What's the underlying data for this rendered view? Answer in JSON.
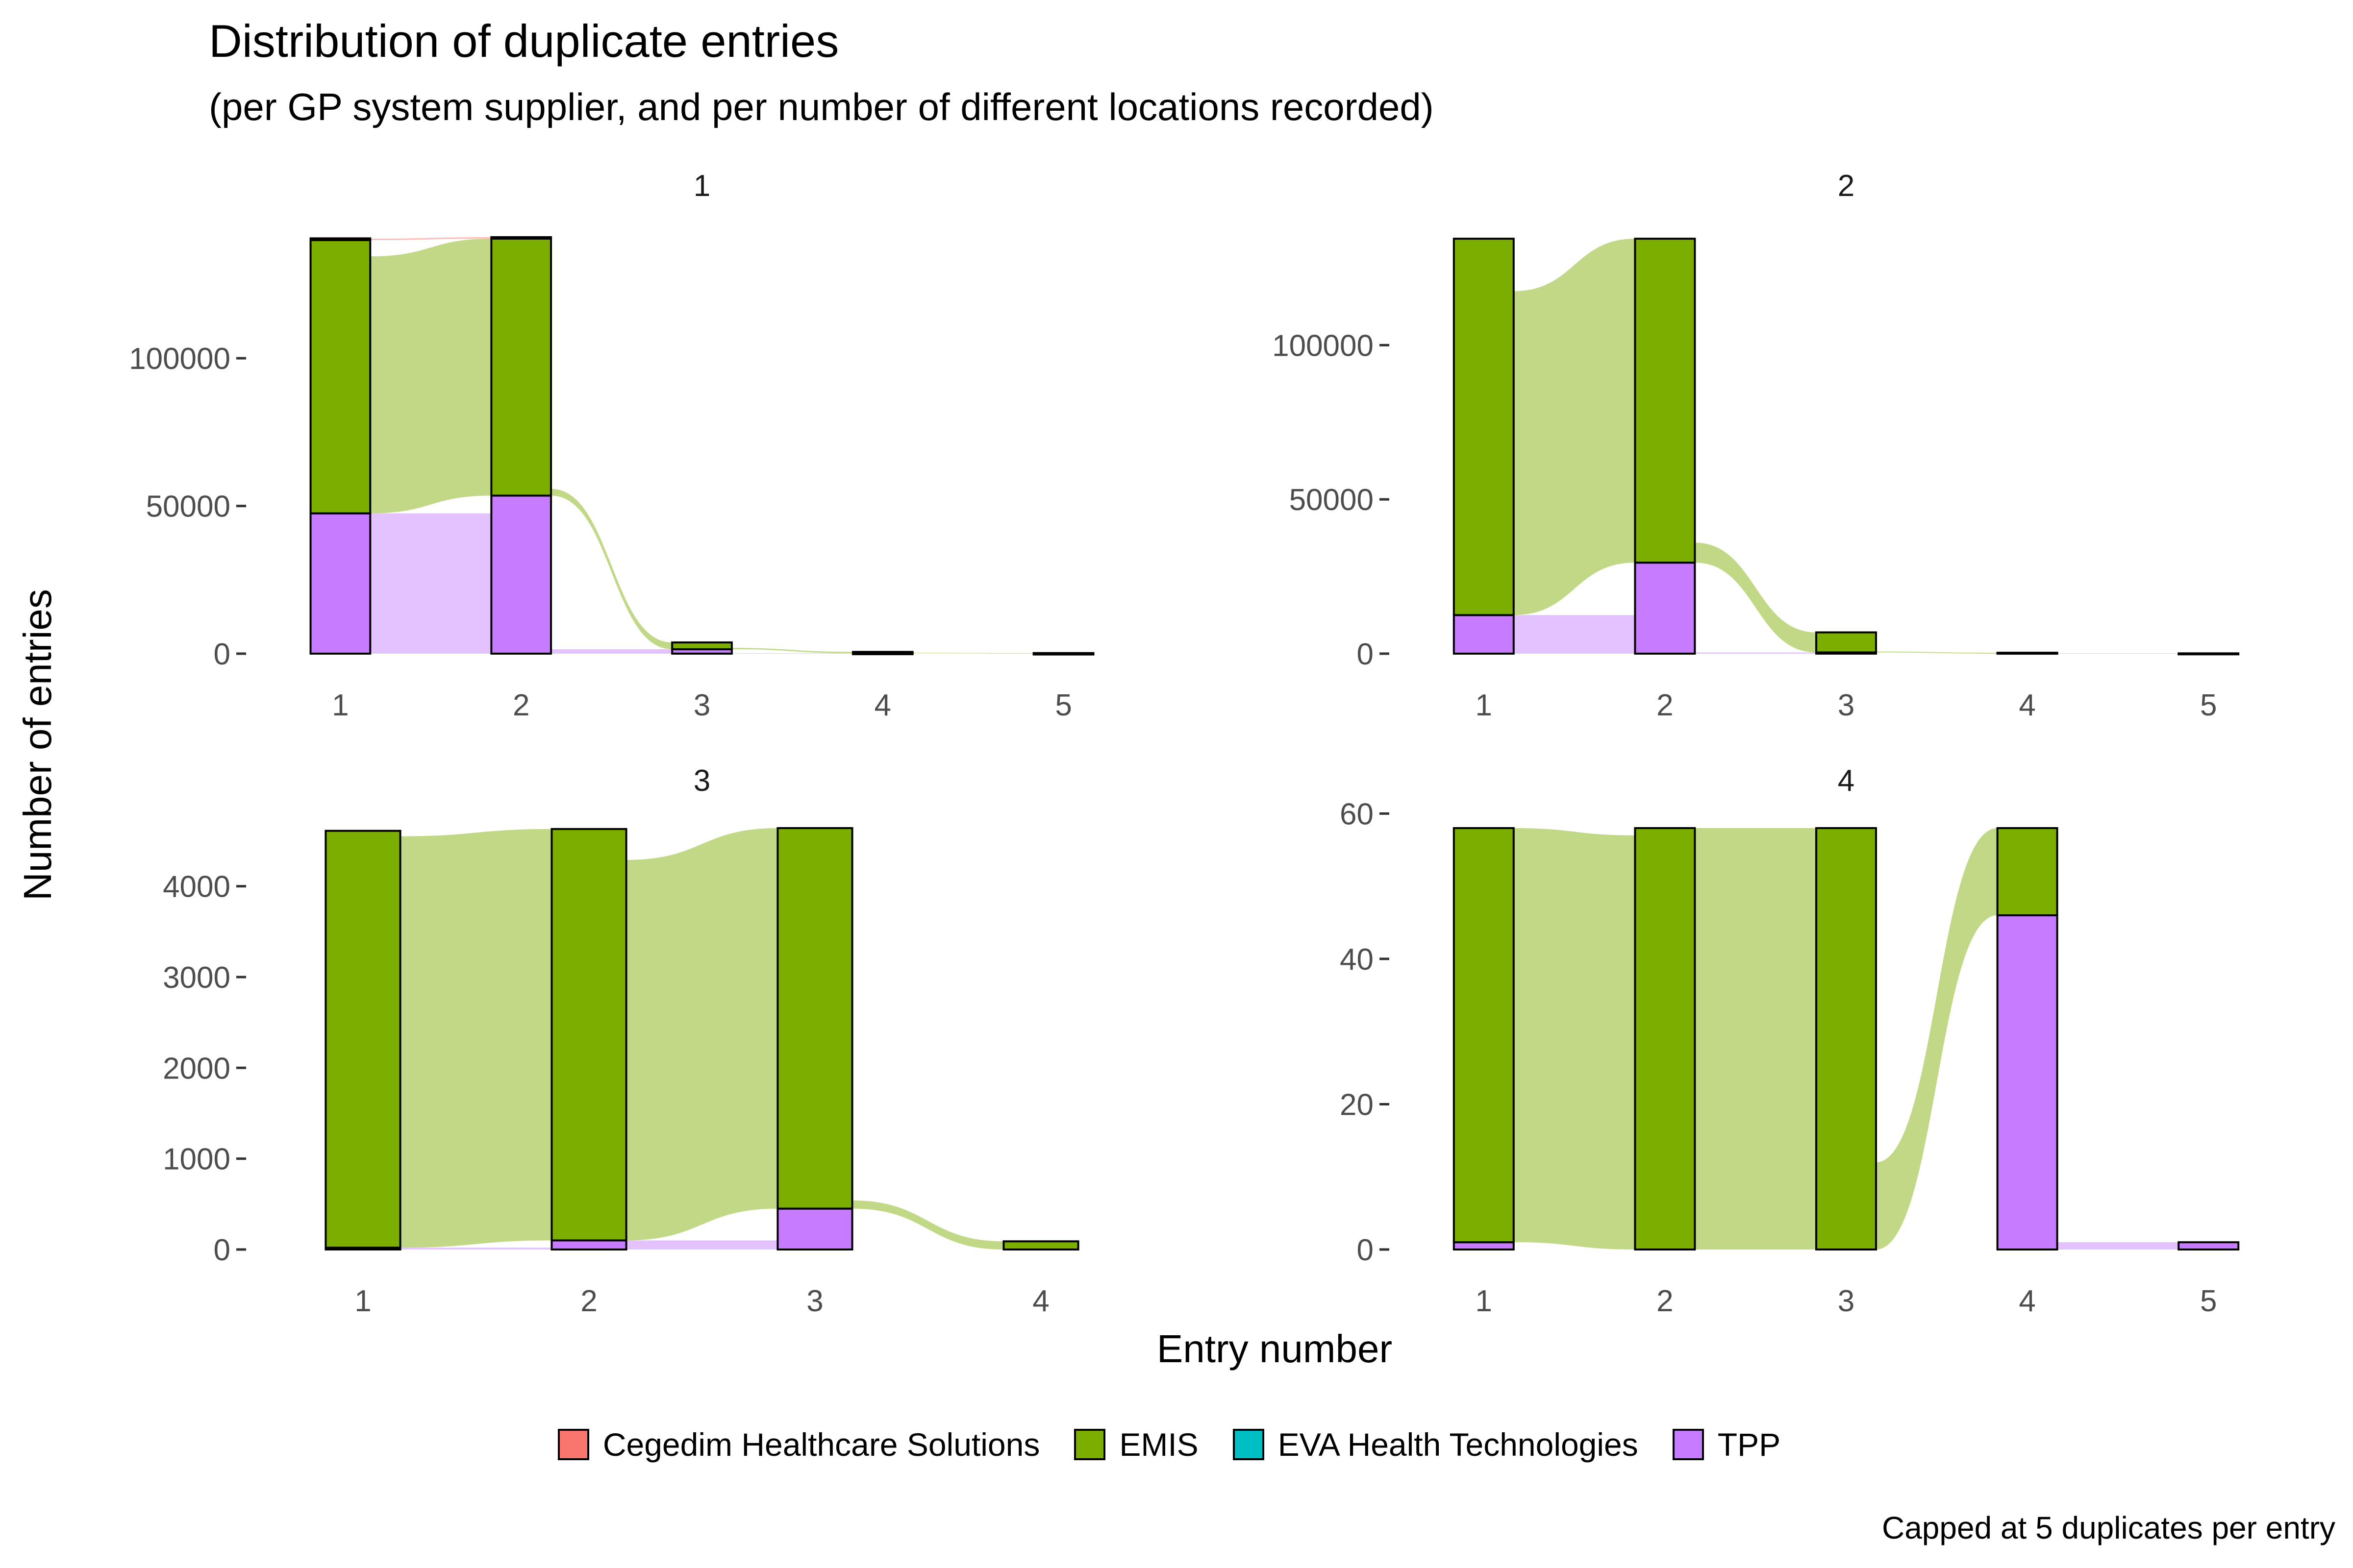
{
  "title": "Distribution of duplicate entries",
  "subtitle": "(per GP system supplier, and per number of different locations recorded)",
  "caption": "Capped at 5 duplicates per entry",
  "xlabel": "Entry number",
  "ylabel": "Number of entries",
  "colors": {
    "cegedim": "#F8766D",
    "emis": "#7CAE00",
    "eva": "#00BFC4",
    "tpp": "#C77CFF"
  },
  "legend": [
    {
      "label": "Cegedim Healthcare Solutions",
      "color": "#F8766D"
    },
    {
      "label": "EMIS",
      "color": "#7CAE00"
    },
    {
      "label": "EVA Health Technologies",
      "color": "#00BFC4"
    },
    {
      "label": "TPP",
      "color": "#C77CFF"
    }
  ],
  "chart_data": [
    {
      "type": "bar",
      "panel": "1",
      "x": [
        1,
        2,
        3,
        4,
        5
      ],
      "ylim": [
        0,
        141000
      ],
      "yticks": [
        0,
        50000,
        100000
      ],
      "series": [
        {
          "name": "Cegedim Healthcare Solutions",
          "values": [
            600,
            500,
            0,
            0,
            0
          ]
        },
        {
          "name": "EMIS",
          "values": [
            92500,
            87000,
            2300,
            450,
            150
          ]
        },
        {
          "name": "TPP",
          "values": [
            47500,
            53500,
            1500,
            150,
            50
          ]
        }
      ]
    },
    {
      "type": "bar",
      "panel": "2",
      "x": [
        1,
        2,
        3,
        4,
        5
      ],
      "ylim": [
        0,
        135000
      ],
      "yticks": [
        0,
        50000,
        100000
      ],
      "series": [
        {
          "name": "EMIS",
          "values": [
            122000,
            105000,
            6500,
            300,
            100
          ]
        },
        {
          "name": "TPP",
          "values": [
            12500,
            29500,
            400,
            0,
            0
          ]
        }
      ]
    },
    {
      "type": "bar",
      "panel": "3",
      "x": [
        1,
        2,
        3,
        4
      ],
      "ylim": [
        0,
        4640
      ],
      "yticks": [
        0,
        1000,
        2000,
        3000,
        4000
      ],
      "series": [
        {
          "name": "EMIS",
          "values": [
            4590,
            4530,
            4190,
            90
          ]
        },
        {
          "name": "TPP",
          "values": [
            20,
            100,
            450,
            0
          ]
        }
      ]
    },
    {
      "type": "bar",
      "panel": "4",
      "x": [
        1,
        2,
        3,
        4,
        5
      ],
      "ylim": [
        0,
        58
      ],
      "yticks": [
        0,
        20,
        40,
        60
      ],
      "series": [
        {
          "name": "EMIS",
          "values": [
            57,
            58,
            58,
            12,
            0
          ]
        },
        {
          "name": "TPP",
          "values": [
            1,
            0,
            0,
            46,
            1
          ]
        }
      ]
    }
  ]
}
